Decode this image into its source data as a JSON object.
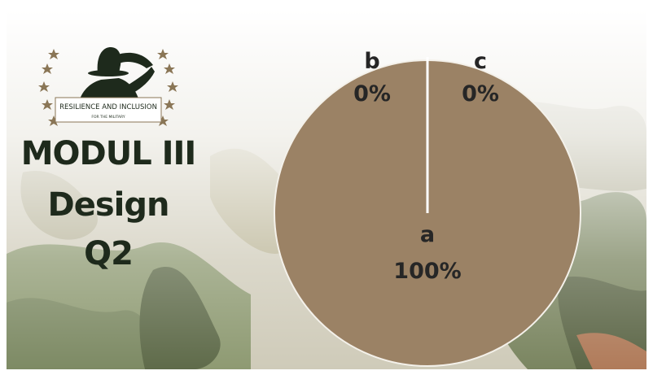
{
  "logo": {
    "text_top": "RESILIENCE AND INCLUSION",
    "text_bottom": "FOR THE MILITARY"
  },
  "title": {
    "line1": "MODUL III",
    "line2": "Design",
    "line3": "Q2"
  },
  "colors": {
    "slice": "#9b8265",
    "title": "#1e2a1c",
    "star": "#8a7656"
  },
  "chart_data": {
    "type": "pie",
    "categories": [
      "a",
      "b",
      "c"
    ],
    "values": [
      100,
      0,
      0
    ],
    "data_labels": [
      "100%",
      "0%",
      "0%"
    ]
  }
}
